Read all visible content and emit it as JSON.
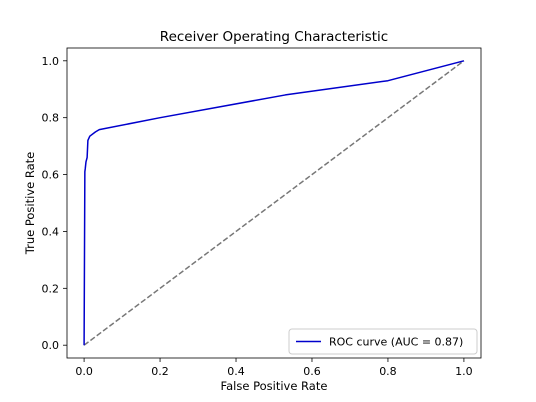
{
  "chart_data": {
    "type": "line",
    "title": "Receiver Operating Characteristic",
    "xlabel": "False Positive Rate",
    "ylabel": "True Positive Rate",
    "xlim": [
      -0.045,
      1.045
    ],
    "ylim": [
      -0.045,
      1.045
    ],
    "xticks": [
      "0.0",
      "0.2",
      "0.4",
      "0.6",
      "0.8",
      "1.0"
    ],
    "yticks": [
      "0.0",
      "0.2",
      "0.4",
      "0.6",
      "0.8",
      "1.0"
    ],
    "grid": false,
    "legend_position": "lower right",
    "series": [
      {
        "name": "ROC curve (AUC = 0.87)",
        "color": "#0000cc",
        "style": "solid",
        "x": [
          0.0,
          0.002,
          0.003,
          0.005,
          0.008,
          0.01,
          0.015,
          0.03,
          0.04,
          0.2,
          0.53,
          0.8,
          1.0
        ],
        "y": [
          0.0,
          0.61,
          0.62,
          0.645,
          0.66,
          0.72,
          0.735,
          0.75,
          0.758,
          0.8,
          0.88,
          0.93,
          1.0
        ]
      },
      {
        "color": "#777777",
        "style": "dashed",
        "x": [
          0.0,
          1.0
        ],
        "y": [
          0.0,
          1.0
        ]
      }
    ],
    "legend": [
      {
        "label": "ROC curve (AUC = 0.87)",
        "color": "#0000cc"
      }
    ]
  }
}
